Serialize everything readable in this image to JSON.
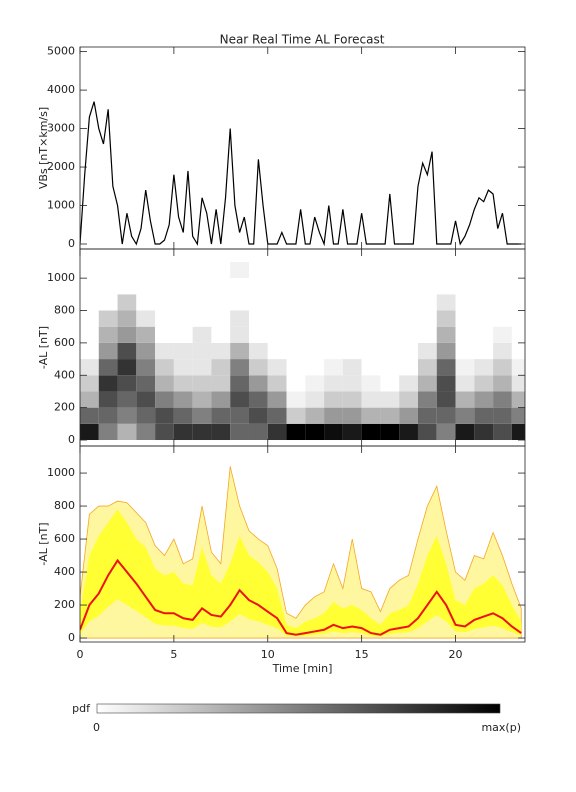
{
  "chart_data": [
    {
      "type": "line",
      "title": "Near Real Time AL Forecast",
      "ylabel": "VBs [nT×km/s]",
      "color": "#000000",
      "x": [
        0,
        0.25,
        0.5,
        0.75,
        1,
        1.25,
        1.5,
        1.75,
        2,
        2.25,
        2.5,
        2.75,
        3,
        3.25,
        3.5,
        3.75,
        4,
        4.25,
        4.5,
        4.75,
        5,
        5.25,
        5.5,
        5.75,
        6,
        6.25,
        6.5,
        6.75,
        7,
        7.25,
        7.5,
        7.75,
        8,
        8.25,
        8.5,
        8.75,
        9,
        9.25,
        9.5,
        9.75,
        10,
        10.25,
        10.5,
        10.75,
        11,
        11.25,
        11.5,
        11.75,
        12,
        12.25,
        12.5,
        12.75,
        13,
        13.25,
        13.5,
        13.75,
        14,
        14.25,
        14.5,
        14.75,
        15,
        15.25,
        15.5,
        15.75,
        16,
        16.25,
        16.5,
        16.75,
        17,
        17.25,
        17.5,
        17.75,
        18,
        18.25,
        18.5,
        18.75,
        19,
        19.25,
        19.5,
        19.75,
        20,
        20.25,
        20.5,
        20.75,
        21,
        21.25,
        21.5,
        21.75,
        22,
        22.25,
        22.5,
        22.75,
        23,
        23.25,
        23.5
      ],
      "values": [
        0,
        1800,
        3300,
        3700,
        3000,
        2600,
        3500,
        1500,
        1000,
        0,
        800,
        200,
        0,
        400,
        1400,
        600,
        0,
        0,
        100,
        500,
        1800,
        700,
        300,
        1900,
        200,
        0,
        1200,
        800,
        0,
        900,
        0,
        1200,
        3000,
        1000,
        300,
        700,
        0,
        0,
        2200,
        1000,
        0,
        0,
        0,
        300,
        0,
        0,
        0,
        900,
        0,
        0,
        700,
        300,
        0,
        1000,
        0,
        0,
        900,
        0,
        0,
        0,
        800,
        0,
        0,
        0,
        0,
        0,
        1300,
        0,
        0,
        0,
        0,
        0,
        1500,
        2100,
        1800,
        2400,
        0,
        0,
        0,
        0,
        600,
        0,
        200,
        500,
        900,
        1200,
        1100,
        1400,
        1300,
        400,
        800,
        0,
        0,
        0,
        0
      ],
      "ylim": [
        -130,
        5120
      ],
      "yticks": [
        0,
        1000,
        2000,
        3000,
        4000,
        5000
      ]
    },
    {
      "type": "heatmap",
      "ylabel": "-AL [nT]",
      "xbins": [
        0,
        1,
        2,
        3,
        4,
        5,
        6,
        7,
        8,
        9,
        10,
        11,
        12,
        13,
        14,
        15,
        16,
        17,
        18,
        19,
        20,
        21,
        22,
        23,
        24
      ],
      "ybins": [
        0,
        100,
        200,
        300,
        400,
        500,
        600,
        700,
        800,
        900,
        1000,
        1100
      ],
      "z": [
        [
          0.9,
          0.6,
          0.3,
          0.2,
          0.1,
          0,
          0,
          0,
          0,
          0,
          0
        ],
        [
          0.5,
          0.6,
          0.7,
          0.8,
          0.6,
          0.4,
          0.3,
          0.2,
          0,
          0,
          0
        ],
        [
          0.3,
          0.5,
          0.6,
          0.7,
          0.8,
          0.7,
          0.4,
          0.3,
          0.2,
          0,
          0
        ],
        [
          0.5,
          0.6,
          0.7,
          0.6,
          0.5,
          0.4,
          0.3,
          0.1,
          0,
          0,
          0
        ],
        [
          0.7,
          0.7,
          0.5,
          0.3,
          0.2,
          0.1,
          0,
          0,
          0,
          0,
          0
        ],
        [
          0.8,
          0.6,
          0.4,
          0.2,
          0.1,
          0.1,
          0,
          0,
          0,
          0,
          0
        ],
        [
          0.8,
          0.5,
          0.3,
          0.2,
          0.1,
          0.1,
          0.1,
          0,
          0,
          0,
          0
        ],
        [
          0.8,
          0.6,
          0.4,
          0.2,
          0.2,
          0.1,
          0,
          0,
          0,
          0,
          0
        ],
        [
          0.6,
          0.6,
          0.7,
          0.6,
          0.5,
          0.3,
          0.1,
          0.1,
          0,
          0,
          0.05
        ],
        [
          0.6,
          0.7,
          0.6,
          0.4,
          0.2,
          0.1,
          0,
          0,
          0,
          0,
          0
        ],
        [
          0.8,
          0.6,
          0.4,
          0.2,
          0.1,
          0,
          0,
          0,
          0,
          0,
          0
        ],
        [
          1,
          0.2,
          0.05,
          0,
          0,
          0,
          0,
          0,
          0,
          0,
          0
        ],
        [
          1,
          0.3,
          0.1,
          0.05,
          0,
          0,
          0,
          0,
          0,
          0,
          0
        ],
        [
          0.95,
          0.4,
          0.2,
          0.1,
          0.05,
          0,
          0,
          0,
          0,
          0,
          0
        ],
        [
          0.9,
          0.4,
          0.2,
          0.1,
          0.1,
          0,
          0,
          0,
          0,
          0,
          0
        ],
        [
          1,
          0.3,
          0.1,
          0.05,
          0,
          0,
          0,
          0,
          0,
          0,
          0
        ],
        [
          1,
          0.3,
          0.1,
          0,
          0,
          0,
          0,
          0,
          0,
          0,
          0
        ],
        [
          0.9,
          0.4,
          0.2,
          0.1,
          0,
          0,
          0,
          0,
          0,
          0,
          0
        ],
        [
          0.7,
          0.6,
          0.5,
          0.3,
          0.2,
          0.1,
          0,
          0,
          0,
          0,
          0
        ],
        [
          0.5,
          0.6,
          0.7,
          0.7,
          0.6,
          0.4,
          0.3,
          0.2,
          0.1,
          0,
          0
        ],
        [
          0.9,
          0.5,
          0.3,
          0.1,
          0.05,
          0,
          0,
          0,
          0,
          0,
          0
        ],
        [
          0.8,
          0.6,
          0.4,
          0.2,
          0.1,
          0,
          0,
          0,
          0,
          0,
          0
        ],
        [
          0.7,
          0.6,
          0.5,
          0.3,
          0.2,
          0.1,
          0.05,
          0,
          0,
          0,
          0
        ],
        [
          0.9,
          0.5,
          0.3,
          0.1,
          0.05,
          0,
          0,
          0,
          0,
          0,
          0
        ]
      ],
      "ylim": [
        -37,
        1180
      ],
      "yticks": [
        0,
        200,
        400,
        600,
        800,
        1000
      ],
      "colorbar": {
        "label": "pdf",
        "low": 0,
        "high": "max(p)"
      }
    },
    {
      "type": "bands",
      "ylabel": "-AL [nT]",
      "xlabel": "Time [min]",
      "x": [
        0,
        0.5,
        1,
        1.5,
        2,
        2.5,
        3,
        3.5,
        4,
        4.5,
        5,
        5.5,
        6,
        6.5,
        7,
        7.5,
        8,
        8.5,
        9,
        9.5,
        10,
        10.5,
        11,
        11.5,
        12,
        12.5,
        13,
        13.5,
        14,
        14.5,
        15,
        15.5,
        16,
        16.5,
        17,
        17.5,
        18,
        18.5,
        19,
        19.5,
        20,
        20.5,
        21,
        21.5,
        22,
        22.5,
        23,
        23.5
      ],
      "bands": [
        {
          "color": "#fff6a0",
          "edge": "#f5a623",
          "upper": [
            250,
            750,
            800,
            800,
            830,
            820,
            760,
            700,
            560,
            500,
            600,
            450,
            480,
            800,
            520,
            450,
            1040,
            800,
            650,
            600,
            560,
            420,
            150,
            120,
            200,
            250,
            280,
            450,
            300,
            600,
            300,
            280,
            160,
            300,
            350,
            380,
            600,
            800,
            920,
            650,
            400,
            350,
            500,
            480,
            640,
            500,
            330,
            180
          ]
        },
        {
          "color": "#ffff33",
          "upper": [
            150,
            500,
            620,
            700,
            780,
            700,
            600,
            550,
            420,
            380,
            400,
            330,
            320,
            550,
            380,
            330,
            450,
            620,
            500,
            460,
            400,
            300,
            80,
            60,
            100,
            120,
            150,
            220,
            180,
            200,
            170,
            120,
            80,
            150,
            170,
            200,
            330,
            500,
            620,
            450,
            230,
            200,
            300,
            330,
            380,
            320,
            200,
            100
          ],
          "lower": [
            25,
            100,
            135,
            190,
            235,
            200,
            165,
            125,
            85,
            75,
            75,
            60,
            55,
            90,
            70,
            65,
            100,
            145,
            115,
            100,
            80,
            60,
            15,
            10,
            15,
            20,
            25,
            40,
            30,
            35,
            30,
            15,
            10,
            25,
            30,
            35,
            60,
            100,
            140,
            100,
            40,
            35,
            55,
            65,
            75,
            60,
            35,
            15
          ]
        }
      ],
      "median": {
        "color": "#ee1111",
        "values": [
          50,
          200,
          270,
          380,
          470,
          400,
          330,
          250,
          170,
          150,
          150,
          120,
          110,
          180,
          140,
          130,
          200,
          290,
          230,
          200,
          160,
          120,
          30,
          20,
          30,
          40,
          50,
          80,
          60,
          70,
          60,
          30,
          20,
          50,
          60,
          70,
          120,
          200,
          280,
          200,
          80,
          70,
          110,
          130,
          150,
          120,
          70,
          30
        ]
      },
      "xlim": [
        0,
        23.7
      ],
      "xticks": [
        0,
        5,
        10,
        15,
        20
      ],
      "ylim": [
        -24,
        1164
      ],
      "yticks": [
        0,
        200,
        400,
        600,
        800,
        1000
      ]
    }
  ]
}
